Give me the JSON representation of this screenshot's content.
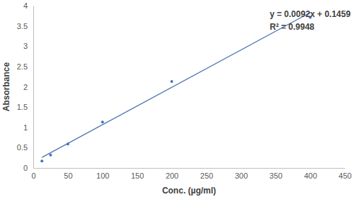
{
  "chart_data": {
    "type": "scatter",
    "x_label": "Conc. (µg/ml)",
    "y_label": "Absorbance",
    "annotations": [
      "y = 0.0092x + 0.1459",
      "R² = 0.9948"
    ],
    "series": [
      {
        "type": "scatter",
        "marker": "circle",
        "color": "#4472c4",
        "x": [
          12.5,
          25,
          50,
          100,
          200,
          400
        ],
        "values": [
          0.17,
          0.32,
          0.59,
          1.13,
          2.13,
          3.71
        ]
      },
      {
        "type": "line",
        "line_style": "solid",
        "color": "#4a72b0",
        "x": [
          12.5,
          400
        ],
        "values": [
          0.26,
          3.83
        ]
      }
    ],
    "xlim": [
      0,
      450
    ],
    "xticks": [
      0,
      50,
      100,
      150,
      200,
      250,
      300,
      350,
      400,
      450
    ],
    "ylim": [
      0,
      4
    ],
    "yticks": [
      0,
      0.5,
      1,
      1.5,
      2,
      2.5,
      3,
      3.5,
      4
    ],
    "grid": false
  }
}
